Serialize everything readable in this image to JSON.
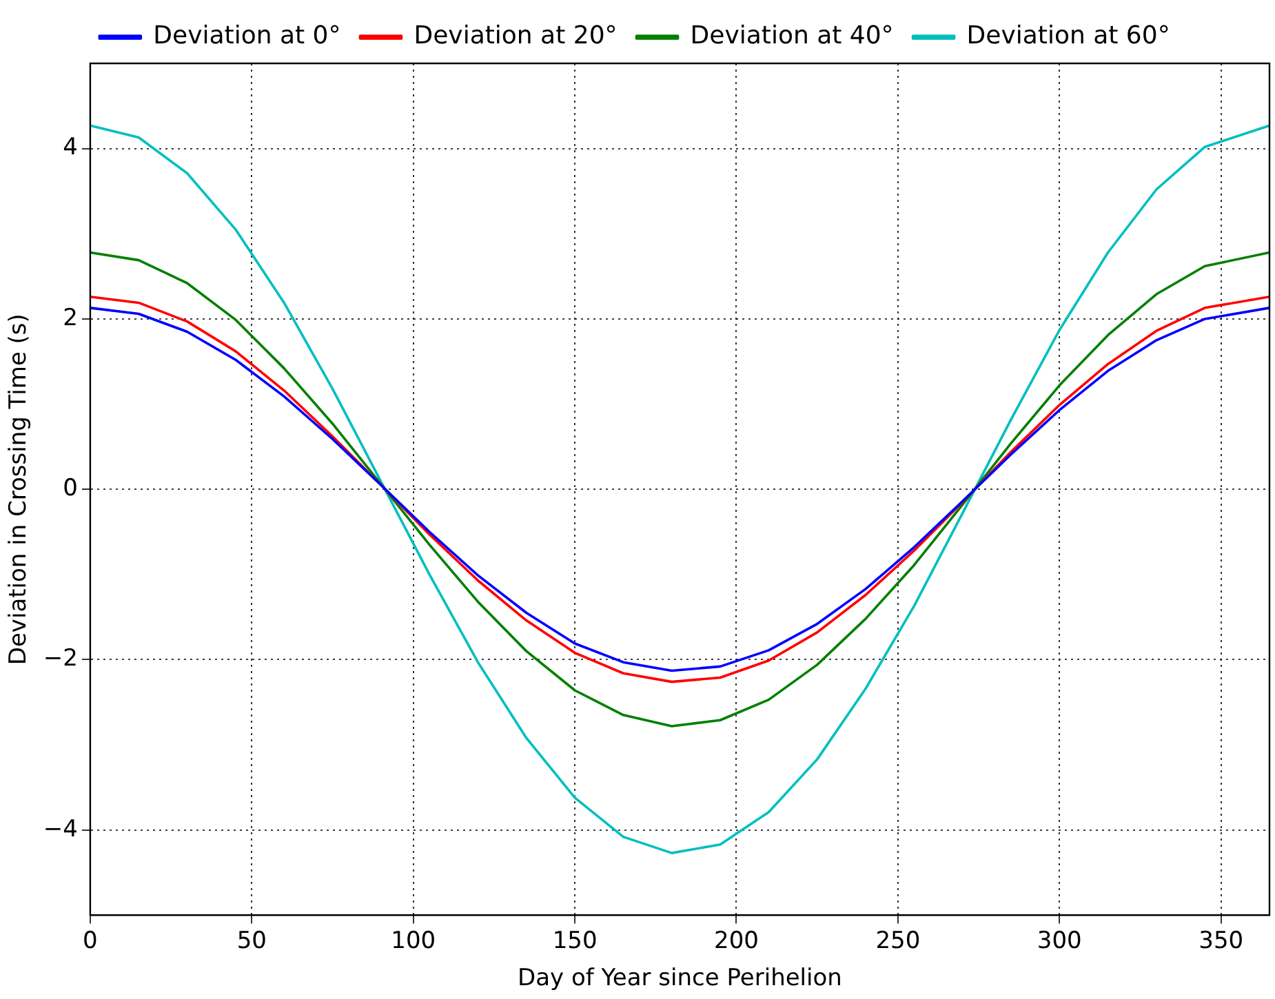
{
  "chart_data": {
    "type": "line",
    "xlabel": "Day of Year since Perihelion",
    "ylabel": "Deviation in Crossing Time (s)",
    "x": [
      0,
      15,
      30,
      45,
      60,
      75,
      90,
      105,
      120,
      135,
      150,
      165,
      180,
      195,
      210,
      225,
      240,
      255,
      270,
      285,
      300,
      315,
      330,
      345,
      365
    ],
    "series": [
      {
        "name": "Deviation at 0°",
        "color": "#0000ff",
        "values": [
          2.13,
          2.06,
          1.85,
          1.52,
          1.09,
          0.59,
          0.05,
          -0.5,
          -1.01,
          -1.45,
          -1.81,
          -2.03,
          -2.13,
          -2.08,
          -1.89,
          -1.58,
          -1.17,
          -0.68,
          -0.14,
          0.41,
          0.93,
          1.39,
          1.75,
          2.0,
          2.13
        ]
      },
      {
        "name": "Deviation at 20°",
        "color": "#ff0000",
        "values": [
          2.26,
          2.19,
          1.97,
          1.62,
          1.16,
          0.62,
          0.05,
          -0.53,
          -1.07,
          -1.54,
          -1.92,
          -2.16,
          -2.26,
          -2.21,
          -2.01,
          -1.68,
          -1.24,
          -0.72,
          -0.15,
          0.44,
          0.99,
          1.47,
          1.86,
          2.13,
          2.26
        ]
      },
      {
        "name": "Deviation at 40°",
        "color": "#008000",
        "values": [
          2.78,
          2.69,
          2.42,
          1.99,
          1.42,
          0.77,
          0.06,
          -0.65,
          -1.32,
          -1.9,
          -2.36,
          -2.65,
          -2.78,
          -2.71,
          -2.47,
          -2.06,
          -1.52,
          -0.89,
          -0.18,
          0.54,
          1.22,
          1.81,
          2.29,
          2.62,
          2.78
        ]
      },
      {
        "name": "Deviation at 60°",
        "color": "#00bfbf",
        "values": [
          4.27,
          4.13,
          3.71,
          3.05,
          2.19,
          1.18,
          0.09,
          -1.0,
          -2.03,
          -2.92,
          -3.62,
          -4.08,
          -4.27,
          -4.17,
          -3.79,
          -3.17,
          -2.34,
          -1.37,
          -0.28,
          0.82,
          1.87,
          2.78,
          3.52,
          4.02,
          4.27
        ]
      }
    ],
    "xlim": [
      0,
      365
    ],
    "xticks": [
      0,
      50,
      100,
      150,
      200,
      250,
      300,
      350
    ],
    "ylim": [
      -5,
      5
    ],
    "yticks": [
      -4,
      -2,
      0,
      2,
      4
    ],
    "grid": true,
    "legend": "top",
    "marker": "none",
    "line_style": "solid"
  }
}
